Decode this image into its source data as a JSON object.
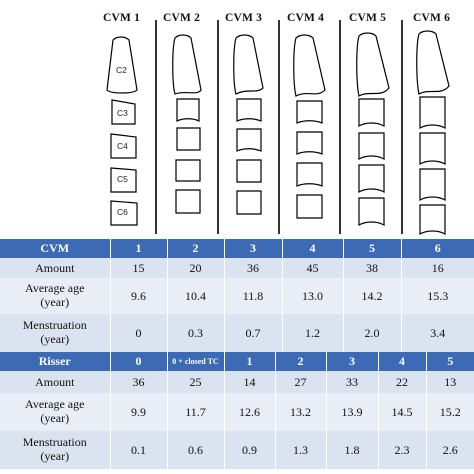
{
  "stages": [
    "CVM 1",
    "CVM 2",
    "CVM 3",
    "CVM 4",
    "CVM 5",
    "CVM 6"
  ],
  "vertebra_labels": [
    "C2",
    "C3",
    "C4",
    "C5",
    "C6"
  ],
  "cvm_table": {
    "header": [
      "CVM",
      "1",
      "2",
      "3",
      "4",
      "5",
      "6"
    ],
    "rows": [
      {
        "label": "Amount",
        "values": [
          "15",
          "20",
          "36",
          "45",
          "38",
          "16"
        ]
      },
      {
        "label": "Average age",
        "label2": "(year)",
        "values": [
          "9.6",
          "10.4",
          "11.8",
          "13.0",
          "14.2",
          "15.3"
        ]
      },
      {
        "label": "Menstruation",
        "label2": "(year)",
        "values": [
          "0",
          "0.3",
          "0.7",
          "1.2",
          "2.0",
          "3.4"
        ]
      }
    ]
  },
  "risser_table": {
    "header": [
      "Risser",
      "0",
      "0 + closed TC",
      "1",
      "2",
      "3",
      "4",
      "5"
    ],
    "rows": [
      {
        "label": "Amount",
        "values": [
          "36",
          "25",
          "14",
          "27",
          "33",
          "22",
          "13"
        ]
      },
      {
        "label": "Average age",
        "label2": "(year)",
        "values": [
          "9.9",
          "11.7",
          "12.6",
          "13.2",
          "13.9",
          "14.5",
          "15.2"
        ]
      },
      {
        "label": "Menstruation",
        "label2": "(year)",
        "values": [
          "0.1",
          "0.6",
          "0.9",
          "1.3",
          "1.8",
          "2.3",
          "2.6"
        ]
      }
    ]
  },
  "colors": {
    "header_bg": "#3d6ab4",
    "row_bg": "#dbe3f0",
    "row_bg_alt": "#e8edf6"
  }
}
